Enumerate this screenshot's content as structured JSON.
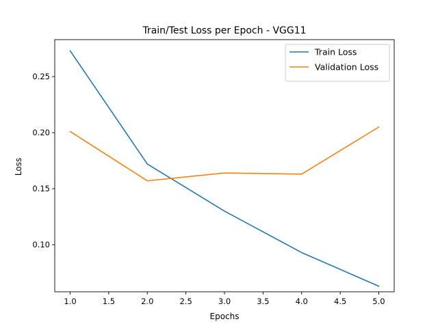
{
  "chart_data": {
    "type": "line",
    "title": "Train/Test Loss per Epoch - VGG11",
    "xlabel": "Epochs",
    "ylabel": "Loss",
    "x": [
      1.0,
      2.0,
      3.0,
      4.0,
      5.0
    ],
    "series": [
      {
        "name": "Train Loss",
        "color": "#1f77b4",
        "values": [
          0.273,
          0.172,
          0.13,
          0.093,
          0.063
        ]
      },
      {
        "name": "Validation Loss",
        "color": "#ff7f0e",
        "values": [
          0.201,
          0.157,
          0.164,
          0.163,
          0.205
        ]
      }
    ],
    "xlim": [
      0.8,
      5.2
    ],
    "ylim": [
      0.058,
      0.283
    ],
    "xticks": [
      1.0,
      1.5,
      2.0,
      2.5,
      3.0,
      3.5,
      4.0,
      4.5,
      5.0
    ],
    "xtick_labels": [
      "1.0",
      "1.5",
      "2.0",
      "2.5",
      "3.0",
      "3.5",
      "4.0",
      "4.5",
      "5.0"
    ],
    "yticks": [
      0.1,
      0.15,
      0.2,
      0.25
    ],
    "ytick_labels": [
      "0.10",
      "0.15",
      "0.20",
      "0.25"
    ],
    "grid": false,
    "legend_position": "top-right"
  }
}
